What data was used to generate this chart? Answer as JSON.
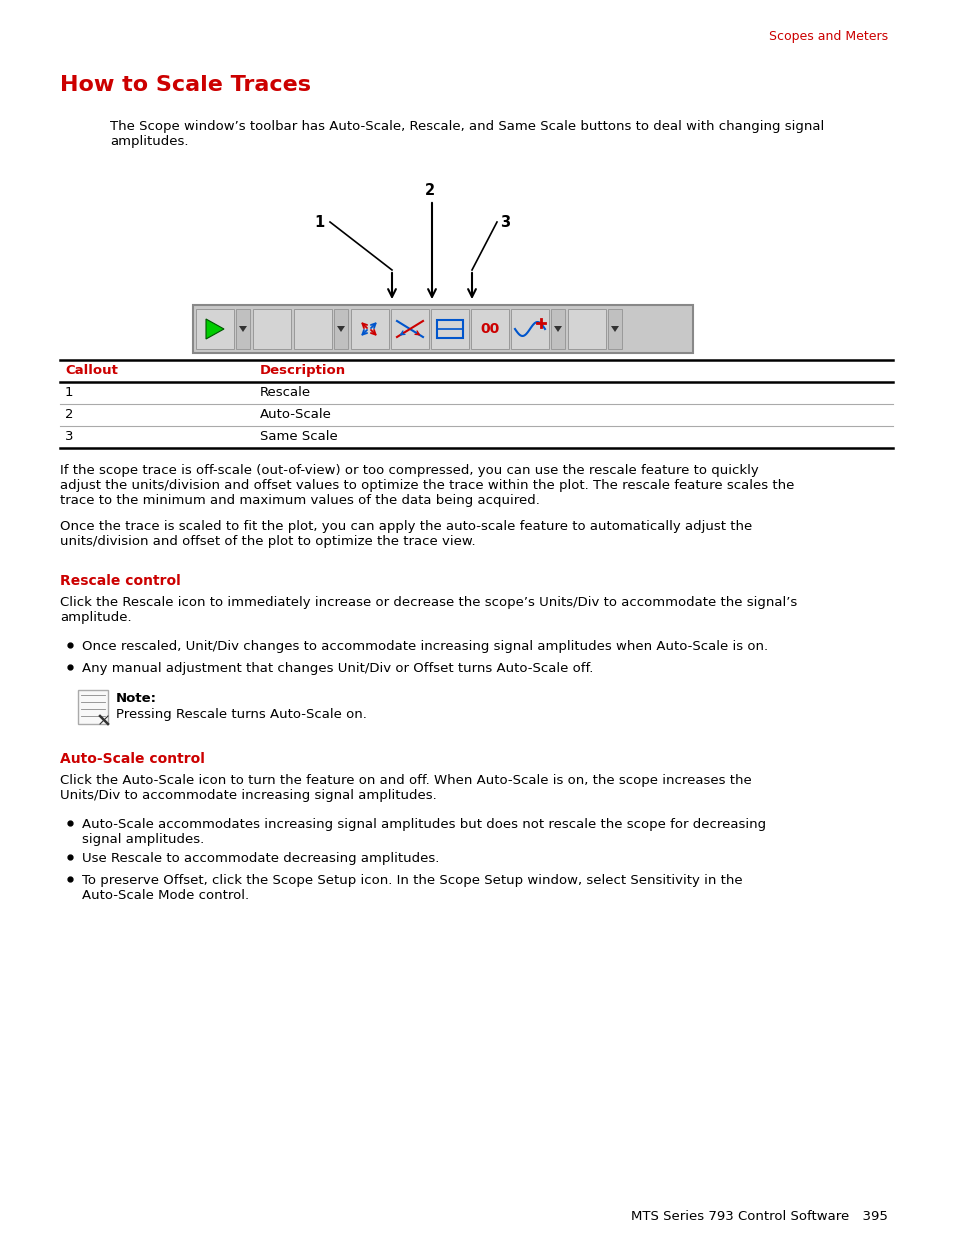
{
  "page_title": "How to Scale Traces",
  "header_right": "Scopes and Meters",
  "header_color": "#cc0000",
  "title_color": "#cc0000",
  "body_text_color": "#000000",
  "bg_color": "#ffffff",
  "footer_text": "MTS Series 793 Control Software  395",
  "intro_text": "The Scope window’s toolbar has Auto-Scale, Rescale, and Same Scale buttons to deal with changing signal\namplitudes.",
  "callout_headers": [
    "Callout",
    "Description"
  ],
  "callout_rows": [
    [
      "1",
      "Rescale"
    ],
    [
      "2",
      "Auto-Scale"
    ],
    [
      "3",
      "Same Scale"
    ]
  ],
  "para1": "If the scope trace is off-scale (out-of-view) or too compressed, you can use the rescale feature to quickly\nadjust the units/division and offset values to optimize the trace within the plot. The rescale feature scales the\ntrace to the minimum and maximum values of the data being acquired.",
  "para2": "Once the trace is scaled to fit the plot, you can apply the auto-scale feature to automatically adjust the\nunits/division and offset of the plot to optimize the trace view.",
  "section1_title": "Rescale control",
  "section1_body": "Click the Rescale icon to immediately increase or decrease the scope’s Units/Div to accommodate the signal’s\namplitude.",
  "bullet1_1": "Once rescaled, Unit/Div changes to accommodate increasing signal amplitudes when Auto-Scale is on.",
  "bullet1_2": "Any manual adjustment that changes Unit/Div or Offset turns Auto-Scale off.",
  "note_label": "Note:",
  "note_text": "Pressing Rescale turns Auto-Scale on.",
  "section2_title": "Auto-Scale control",
  "section2_body": "Click the Auto-Scale icon to turn the feature on and off. When Auto-Scale is on, the scope increases the\nUnits/Div to accommodate increasing signal amplitudes.",
  "bullet2_1": "Auto-Scale accommodates increasing signal amplitudes but does not rescale the scope for decreasing\nsignal amplitudes.",
  "bullet2_2": "Use Rescale to accommodate decreasing amplitudes.",
  "bullet2_3": "To preserve Offset, click the Scope Setup icon. In the Scope Setup window, select Sensitivity in the\nAuto-Scale Mode control.",
  "toolbar_bg": "#c8c8c8",
  "toolbar_border": "#888888"
}
